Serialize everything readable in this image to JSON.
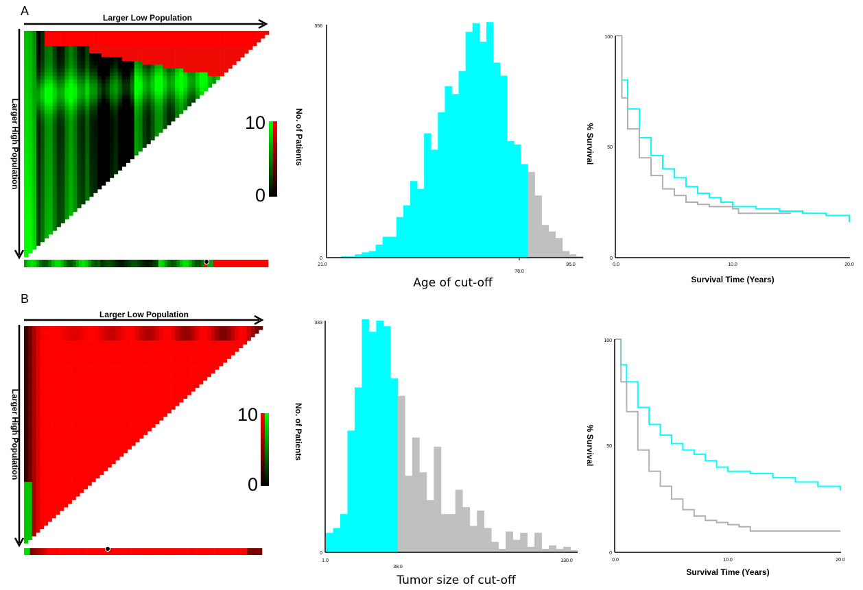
{
  "panels": [
    {
      "letter": "A",
      "heatmap": {
        "xlabel": "Larger Low Population",
        "ylabel": "Larger High Population",
        "colorbar": {
          "max_label": "10",
          "min_label": "0"
        },
        "pattern": "age"
      },
      "survival": {
        "ylabel": "% Survival",
        "xlabel": "Survival Time (Years)",
        "y_ticks": [
          "100",
          "50",
          "0"
        ],
        "x_ticks": [
          "0.0",
          "10.0",
          "20.0"
        ]
      }
    },
    {
      "letter": "B",
      "heatmap": {
        "xlabel": "Larger Low Population",
        "ylabel": "Larger High Population",
        "colorbar": {
          "max_label": "10",
          "min_label": "0"
        },
        "pattern": "tumor"
      },
      "survival": {
        "ylabel": "% Survival",
        "xlabel": "Survival Time (Years)",
        "y_ticks": [
          "100",
          "50",
          "0"
        ],
        "x_ticks": [
          "0.0",
          "10.0",
          "20.0"
        ]
      }
    }
  ],
  "colors": {
    "low_group": "#00ffff",
    "high_group": "#c0c0c0",
    "heat_red": "#ff0000",
    "heat_green": "#00ff00",
    "heat_black": "#000000"
  },
  "chart_data": [
    {
      "type": "bar",
      "xlabel": "Age of cut-off",
      "ylabel": "No. of Patients",
      "x_ticks": [
        "21.0",
        "78.0",
        "95.0"
      ],
      "y_ticks": [
        "356",
        "0"
      ],
      "ylim": [
        0,
        356
      ],
      "xlim": [
        21,
        95
      ],
      "cutoff": 78,
      "values": [
        0,
        0,
        2,
        2,
        5,
        8,
        10,
        20,
        32,
        32,
        62,
        80,
        117,
        105,
        190,
        165,
        222,
        262,
        250,
        285,
        345,
        358,
        330,
        360,
        298,
        278,
        178,
        173,
        143,
        131,
        95,
        50,
        40,
        30,
        10,
        5,
        2
      ]
    },
    {
      "type": "line",
      "xlim": [
        0,
        20
      ],
      "ylim": [
        0,
        100
      ],
      "series": [
        {
          "x": [
            0,
            0.5,
            1,
            2,
            3,
            4,
            5,
            6,
            7,
            8,
            9,
            10,
            12,
            14,
            16,
            18,
            20
          ],
          "y": [
            100,
            80,
            67,
            54,
            46,
            40,
            36,
            32,
            29,
            27,
            25,
            23,
            22,
            21,
            20,
            19,
            16
          ]
        },
        {
          "x": [
            0,
            0.5,
            1,
            2,
            3,
            4,
            5,
            6,
            7,
            8,
            9,
            10,
            10.5,
            12,
            14,
            15
          ],
          "y": [
            100,
            72,
            58,
            45,
            37,
            31,
            28,
            25,
            24,
            23,
            23,
            22,
            20,
            20,
            20,
            20
          ]
        }
      ]
    },
    {
      "type": "bar",
      "xlabel": "Tumor size of cut-off",
      "ylabel": "No. of Patients",
      "x_ticks": [
        "1.0",
        "38.0",
        "130.0"
      ],
      "y_ticks": [
        "333",
        "0"
      ],
      "ylim": [
        0,
        333
      ],
      "xlim": [
        1,
        130
      ],
      "cutoff": 38,
      "values": [
        28,
        35,
        55,
        175,
        237,
        335,
        317,
        333,
        325,
        250,
        225,
        110,
        165,
        115,
        75,
        152,
        55,
        55,
        90,
        65,
        38,
        60,
        35,
        15,
        5,
        30,
        18,
        28,
        8,
        28,
        5,
        10,
        5,
        8,
        3
      ]
    },
    {
      "type": "line",
      "xlim": [
        0,
        20
      ],
      "ylim": [
        0,
        100
      ],
      "series": [
        {
          "x": [
            0,
            0.5,
            1,
            2,
            3,
            4,
            5,
            6,
            7,
            8,
            9,
            10,
            12,
            14,
            16,
            18,
            20
          ],
          "y": [
            100,
            88,
            80,
            68,
            60,
            55,
            51,
            48,
            46,
            43,
            40,
            38,
            37,
            35,
            33,
            31,
            29
          ]
        },
        {
          "x": [
            0,
            0.5,
            1,
            2,
            3,
            4,
            5,
            6,
            7,
            8,
            9,
            10,
            11,
            12,
            14,
            16,
            20
          ],
          "y": [
            100,
            80,
            66,
            48,
            38,
            31,
            25,
            20,
            17,
            15,
            14,
            13,
            12,
            10,
            10,
            10,
            10
          ]
        }
      ]
    }
  ]
}
